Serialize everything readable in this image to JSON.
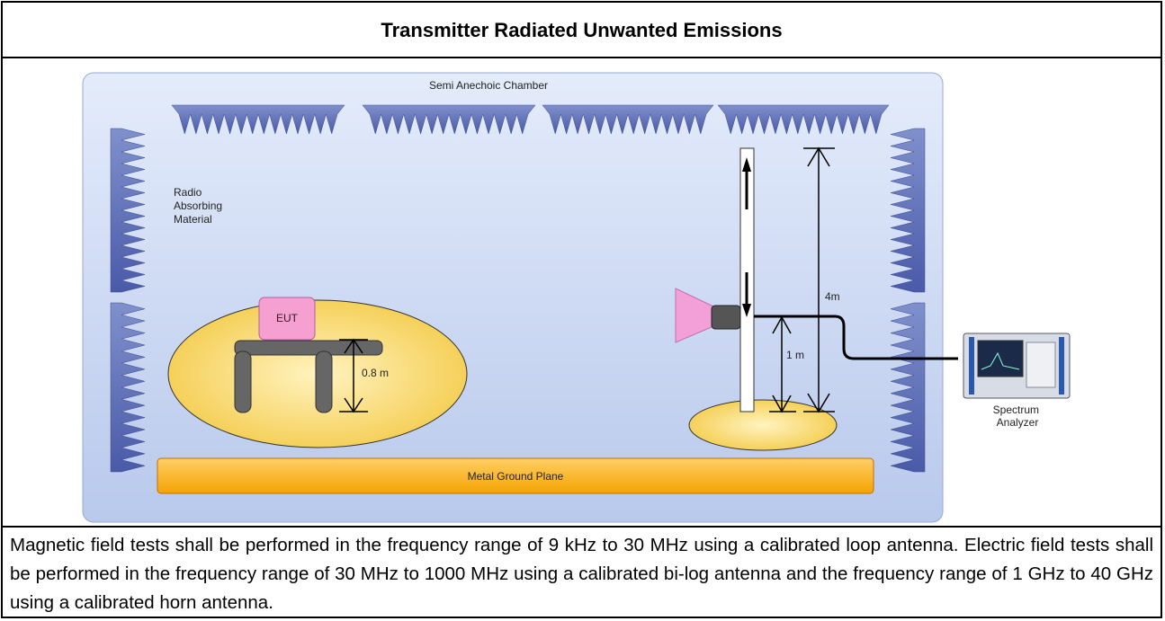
{
  "title": "Transmitter Radiated Unwanted Emissions",
  "diagram": {
    "chamber_label": "Semi Anechoic Chamber",
    "absorber_label": [
      "Radio",
      "Absorbing",
      "Material"
    ],
    "eut_label": "EUT",
    "table_height_label": "0.8 m",
    "mast_height_label": "4m",
    "antenna_height_label": "1 m",
    "analyzer_label": [
      "Spectrum",
      "Analyzer"
    ],
    "ground_plane_label": "Metal Ground Plane"
  },
  "caption": "Magnetic field tests shall be performed in the frequency range of 9 kHz to 30 MHz using a calibrated loop antenna. Electric field tests shall be performed in the frequency range of 30 MHz to 1000 MHz using a calibrated bi-log antenna and the frequency range of 1 GHz to 40 GHz using a calibrated horn antenna."
}
